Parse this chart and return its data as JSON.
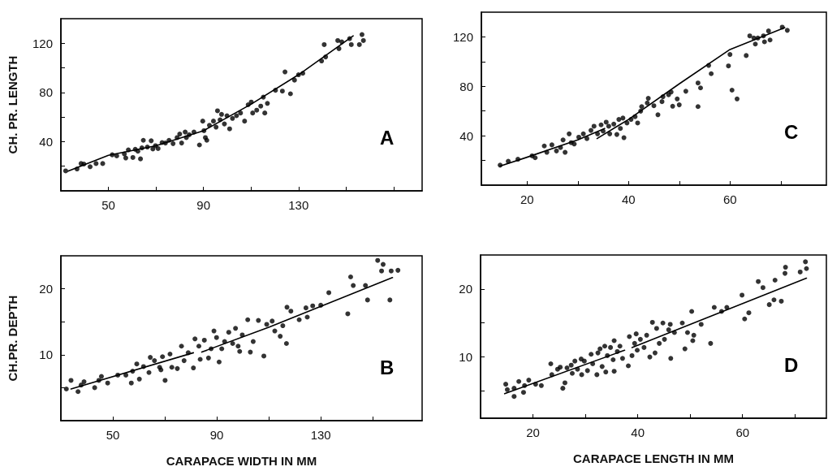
{
  "chart_data": [
    {
      "type": "scatter",
      "ylabel": "CH. PR. LENGTH",
      "annotations": [
        "A"
      ],
      "xlim": [
        30,
        182
      ],
      "ylim": [
        0,
        140
      ],
      "xticks": [
        50,
        {
          "value": 70,
          "label": null
        },
        90,
        {
          "value": 110,
          "label": null
        },
        130,
        {
          "value": 150,
          "label": null
        },
        {
          "value": 170,
          "label": null
        }
      ],
      "yticks": [
        {
          "value": 20,
          "label": null
        },
        40,
        {
          "value": 60,
          "label": null
        },
        80,
        {
          "value": 100,
          "label": null
        },
        120
      ],
      "grid": false,
      "line_style": "solid",
      "series": [
        {
          "type": "scatter",
          "marker": "circle",
          "color": "#000000",
          "x": [
            32,
            36.8,
            38.5,
            39.7,
            42.3,
            44.8,
            47.6,
            51.6,
            53.5,
            56.7,
            57.3,
            58.4,
            60.3,
            61.3,
            62.4,
            63.5,
            64.1,
            64.7,
            66.4,
            68,
            68.7,
            69.8,
            70.9,
            72.6,
            74,
            75.5,
            77.2,
            78.9,
            80,
            80.8,
            82.3,
            82.8,
            84,
            86,
            88.3,
            89.7,
            90.2,
            90.8,
            91.4,
            92.5,
            94.2,
            95.3,
            95.9,
            97,
            97.6,
            98.8,
            99.9,
            101,
            102.2,
            103.9,
            105.6,
            107.3,
            108.8,
            110.1,
            110.7,
            112.4,
            114.1,
            115.2,
            115.8,
            116.9,
            120.3,
            123.2,
            124.3,
            126.6,
            128.3,
            130,
            131.8,
            139.7,
            140.8,
            141.4,
            146.5,
            147,
            148.2,
            151.5,
            152.2,
            155.6,
            156.7,
            157.3
          ],
          "values": [
            16.2,
            17.8,
            22.2,
            21.8,
            19.6,
            22.2,
            22.2,
            29.3,
            28.4,
            30,
            26.7,
            33.3,
            27.1,
            33.8,
            32.2,
            26,
            34.9,
            41.1,
            35.6,
            40.7,
            34,
            36.7,
            34.4,
            39.3,
            38.9,
            41.1,
            38.4,
            43.3,
            46.2,
            38.9,
            47.8,
            43.3,
            45.6,
            47.8,
            37.3,
            56.7,
            48.9,
            43.3,
            41.1,
            53.3,
            56.7,
            51.8,
            65.1,
            57.8,
            62.2,
            54.4,
            61.1,
            50.4,
            58.9,
            61.1,
            63.3,
            56.7,
            70,
            72.2,
            63.3,
            65.6,
            68.9,
            76.2,
            63.3,
            71.1,
            81.8,
            81.1,
            96.7,
            78.9,
            90,
            94.4,
            95.6,
            105.6,
            118.9,
            108.9,
            122.2,
            115.6,
            121.1,
            123.8,
            118.9,
            118.9,
            127.1,
            122.2
          ]
        },
        {
          "type": "line",
          "marker": "none",
          "color": "#000000",
          "x": [
            33,
            50,
            70,
            90,
            110,
            130,
            153
          ],
          "values": [
            16,
            28.9,
            36.7,
            48.9,
            70.4,
            94.4,
            126
          ]
        }
      ]
    },
    {
      "type": "scatter",
      "annotations": [
        "C"
      ],
      "xlim": [
        11,
        79
      ],
      "ylim": [
        0,
        140
      ],
      "xticks": [
        20,
        {
          "value": 30,
          "label": null
        },
        40,
        {
          "value": 50,
          "label": null
        },
        60,
        {
          "value": 70,
          "label": null
        }
      ],
      "yticks": [
        {
          "value": 20,
          "label": null
        },
        40,
        {
          "value": 60,
          "label": null
        },
        80,
        {
          "value": 100,
          "label": null
        },
        120
      ],
      "grid": false,
      "line_style": "solid",
      "series": [
        {
          "type": "scatter",
          "marker": "circle",
          "color": "#000000",
          "x": [
            14.7,
            16.3,
            18.2,
            21,
            21.6,
            23.4,
            23.9,
            24.9,
            25.8,
            26.6,
            27.1,
            27.5,
            28.3,
            28.7,
            29.3,
            30.2,
            31.1,
            31.8,
            32.6,
            33.2,
            33.9,
            34.6,
            35,
            35.6,
            36.1,
            36.3,
            37.1,
            37.7,
            38.1,
            38.4,
            38.9,
            39.1,
            39.7,
            40.5,
            41.3,
            41.8,
            42.4,
            42.6,
            43.7,
            43.9,
            45,
            45.8,
            46.6,
            46.8,
            47.9,
            48.4,
            48.7,
            49.6,
            50,
            51.3,
            53.7,
            53.7,
            54.2,
            55.8,
            56.3,
            59.7,
            60,
            60.4,
            61.4,
            63.2,
            63.9,
            64.7,
            65,
            65.5,
            66.6,
            66.8,
            67.6,
            67.9,
            70.3,
            71.3
          ],
          "values": [
            16.2,
            19.3,
            21,
            23.7,
            22.2,
            31.7,
            26.6,
            32.6,
            27.7,
            30.4,
            36.6,
            26.6,
            41.5,
            34.4,
            33.3,
            38.8,
            41.5,
            37.7,
            44.3,
            47.7,
            41.5,
            48.8,
            43.7,
            51,
            47.7,
            41.5,
            49.4,
            41,
            53.2,
            45.9,
            54.3,
            38.4,
            50.3,
            53.2,
            55.4,
            50.3,
            59.9,
            63.6,
            66.5,
            70.3,
            64.3,
            57,
            67.6,
            71.6,
            73.2,
            75.4,
            63.9,
            69.8,
            65,
            76,
            63.6,
            82.7,
            78.7,
            96.9,
            90.2,
            96.5,
            105.8,
            76.9,
            69.8,
            104.9,
            120.8,
            119.1,
            114.2,
            119.1,
            120.8,
            116,
            124.8,
            117.5,
            127.9,
            125.3
          ]
        },
        {
          "type": "line",
          "marker": "none",
          "color": "#000000",
          "x": [
            14.7,
            20,
            30,
            35.3
          ],
          "values": [
            15.5,
            22.6,
            36.6,
            45.9
          ]
        },
        {
          "type": "line",
          "marker": "none",
          "color": "#000000",
          "x": [
            33.8,
            40,
            50,
            60,
            70.8
          ],
          "values": [
            37.7,
            53.2,
            82,
            109.8,
            127.5
          ]
        }
      ]
    },
    {
      "type": "scatter",
      "xlabel": "CARAPACE WIDTH IN MM",
      "ylabel": "CH.PR. DEPTH",
      "annotations": [
        "B"
      ],
      "xlim": [
        30,
        169
      ],
      "ylim": [
        0,
        25
      ],
      "xticks": [
        50,
        {
          "value": 70,
          "label": null
        },
        90,
        {
          "value": 110,
          "label": null
        },
        130,
        {
          "value": 150,
          "label": null
        }
      ],
      "yticks": [
        {
          "value": 5,
          "label": null
        },
        10,
        {
          "value": 15,
          "label": null
        },
        20
      ],
      "grid": false,
      "line_style": "solid",
      "series": [
        {
          "type": "scatter",
          "marker": "circle",
          "color": "#000000",
          "x": [
            32.1,
            33.9,
            36.6,
            37.8,
            38.9,
            43,
            44.6,
            45.6,
            48,
            51.9,
            55,
            57.1,
            57.6,
            59.2,
            60.2,
            61.8,
            63.9,
            64.4,
            66,
            68,
            68.5,
            69.1,
            70.1,
            72,
            72.7,
            74.8,
            76.4,
            77.4,
            79,
            81,
            81.6,
            83.1,
            83.6,
            85.2,
            86.8,
            87.8,
            88.9,
            89.9,
            90.9,
            91.9,
            93,
            94.6,
            96.1,
            97.2,
            98.2,
            98.8,
            99.8,
            101.9,
            102.9,
            104,
            106,
            108.1,
            109.2,
            111.3,
            112.3,
            114.4,
            115.4,
            116.8,
            117,
            118.5,
            121.7,
            124.3,
            124.8,
            126.9,
            130,
            133.1,
            140.4,
            141.5,
            142.5,
            147.2,
            148,
            151.9,
            153.4,
            154,
            156.6,
            157.1,
            159.7
          ],
          "values": [
            4.8,
            6.1,
            4.4,
            5.4,
            5.9,
            5,
            6.1,
            6.7,
            5.7,
            6.9,
            6.9,
            5.7,
            7.5,
            8.6,
            6.3,
            8.2,
            7.3,
            9.6,
            9.1,
            8.1,
            7.7,
            9.7,
            6.1,
            10.1,
            8.1,
            7.9,
            11.3,
            9.1,
            10.3,
            8,
            12.4,
            11.3,
            9.3,
            12.2,
            9.5,
            10.9,
            13.6,
            12.6,
            8.9,
            10.9,
            12,
            13.4,
            11.7,
            14,
            11.3,
            10.5,
            13,
            15.3,
            10.4,
            12,
            15.2,
            9.8,
            14.6,
            15.1,
            13.6,
            12.8,
            14.4,
            11.7,
            17.2,
            16.6,
            15.3,
            17.1,
            15.7,
            17.4,
            17.5,
            19.4,
            16.2,
            21.8,
            20.5,
            20.5,
            18.3,
            24.3,
            22.7,
            23.7,
            18.3,
            22.7,
            22.8
          ]
        },
        {
          "type": "line",
          "marker": "none",
          "color": "#000000",
          "x": [
            33.9,
            81
          ],
          "values": [
            4.8,
            10.3
          ]
        },
        {
          "type": "line",
          "marker": "none",
          "color": "#000000",
          "x": [
            84.2,
            110.2,
            157.6
          ],
          "values": [
            10.4,
            14.2,
            21.7
          ]
        }
      ]
    },
    {
      "type": "scatter",
      "xlabel": "CARAPACE LENGTH IN MM",
      "annotations": [
        "D"
      ],
      "xlim": [
        10,
        76
      ],
      "ylim": [
        1,
        25
      ],
      "xticks": [
        20,
        {
          "value": 30,
          "label": null
        },
        40,
        {
          "value": 50,
          "label": null
        },
        60,
        {
          "value": 70,
          "label": null
        }
      ],
      "yticks": [
        {
          "value": 5,
          "label": null
        },
        10,
        {
          "value": 15,
          "label": null
        },
        20
      ],
      "grid": false,
      "line_style": "solid",
      "series": [
        {
          "type": "scatter",
          "marker": "circle",
          "color": "#000000",
          "x": [
            14.8,
            15.1,
            16.4,
            16.4,
            17.3,
            18.2,
            18.4,
            19.2,
            20.5,
            21.6,
            23.4,
            23.6,
            24.7,
            25.2,
            25.7,
            26.1,
            26.5,
            27.3,
            27.5,
            28,
            28.5,
            29.2,
            29.3,
            29.8,
            30.4,
            31.1,
            31.4,
            32.2,
            32.4,
            32.8,
            33.2,
            33.7,
            33.9,
            34.2,
            34.8,
            35.3,
            35.5,
            35.5,
            36.1,
            36.6,
            37.1,
            38.2,
            38.4,
            38.9,
            39.4,
            39.7,
            39.9,
            40.5,
            41.2,
            41.7,
            42.3,
            42.8,
            43.3,
            43.6,
            44.1,
            44.8,
            45.1,
            45.9,
            46.2,
            46.3,
            47,
            48.5,
            49,
            49.5,
            50.3,
            50.5,
            50.7,
            52.1,
            53.9,
            54.6,
            56,
            57,
            59.9,
            60.4,
            61.2,
            63,
            63.9,
            65.1,
            66,
            66.2,
            67.4,
            68.1,
            68.2,
            71,
            72,
            72.2
          ],
          "values": [
            6,
            5.2,
            4.2,
            5.4,
            6.4,
            4.8,
            5.8,
            6.6,
            6,
            5.8,
            9,
            7.4,
            8.2,
            8.5,
            5.4,
            6.2,
            8.4,
            8.8,
            7.6,
            9.4,
            8.2,
            9.7,
            7.4,
            9.4,
            8,
            10.4,
            9,
            7.4,
            10.6,
            11.2,
            8.6,
            11.6,
            7.8,
            10.2,
            11.4,
            9.6,
            12.4,
            7.9,
            10.8,
            11.6,
            9.8,
            8.7,
            13,
            10.2,
            12,
            13.4,
            11,
            12.6,
            11.4,
            13.2,
            10,
            15.1,
            10.6,
            14.2,
            12,
            15,
            12.6,
            14,
            14.8,
            9.8,
            13.6,
            15,
            11.2,
            13.6,
            16.7,
            12.4,
            13.2,
            14.8,
            12,
            17.3,
            16.7,
            17.3,
            19.1,
            15.6,
            16.5,
            21.1,
            20.2,
            17.7,
            18.4,
            21.3,
            18.2,
            22.3,
            23.2,
            22.5,
            24,
            23
          ]
        },
        {
          "type": "line",
          "marker": "none",
          "color": "#000000",
          "x": [
            14.6,
            37.5
          ],
          "values": [
            4.6,
            11
          ]
        },
        {
          "type": "line",
          "marker": "none",
          "color": "#000000",
          "x": [
            38.9,
            72.2
          ],
          "values": [
            11.4,
            21.6
          ]
        }
      ]
    }
  ]
}
